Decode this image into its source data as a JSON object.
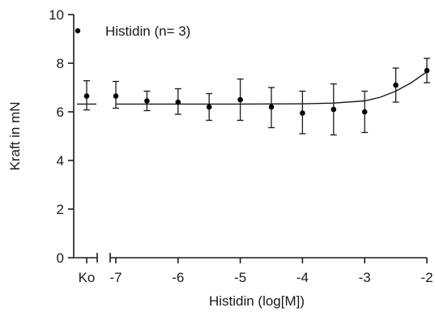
{
  "chart_data": {
    "type": "scatter",
    "legend": {
      "label": "Histidin (n= 3)",
      "placement": "top-left"
    },
    "xlabel": "Histidin (log[M])",
    "ylabel": "Kraft in mN",
    "xlim": [
      -7,
      -2
    ],
    "ylim": [
      0,
      10
    ],
    "x_ticks": [
      -7,
      -6,
      -5,
      -4,
      -3,
      -2
    ],
    "y_ticks": [
      0,
      2,
      4,
      6,
      8,
      10
    ],
    "control": {
      "label": "Ko",
      "mean": 6.65,
      "upper": 7.28,
      "lower": 6.08
    },
    "series": [
      {
        "name": "Histidin (n= 3)",
        "x": [
          -7,
          -6.5,
          -6,
          -5.5,
          -5,
          -4.5,
          -4,
          -3.5,
          -3,
          -2.5,
          -2
        ],
        "mean": [
          6.65,
          6.45,
          6.4,
          6.2,
          6.5,
          6.2,
          5.95,
          6.1,
          6.0,
          7.1,
          7.7
        ],
        "upper": [
          7.25,
          6.85,
          6.95,
          6.75,
          7.35,
          7.0,
          6.85,
          7.15,
          6.85,
          7.8,
          8.2
        ],
        "lower": [
          6.15,
          6.05,
          5.9,
          5.65,
          5.65,
          5.35,
          5.1,
          5.05,
          5.15,
          6.4,
          7.2
        ]
      }
    ],
    "fit": {
      "x": [
        -7,
        -6,
        -5,
        -4,
        -3.5,
        -3,
        -2.75,
        -2.5,
        -2.25,
        -2
      ],
      "y": [
        6.32,
        6.32,
        6.32,
        6.33,
        6.36,
        6.45,
        6.6,
        6.85,
        7.2,
        7.65
      ]
    }
  }
}
